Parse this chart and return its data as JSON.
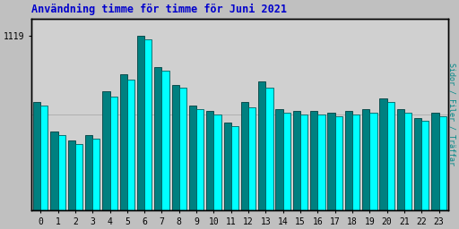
{
  "title": "Användning timme för timme för Juni 2021",
  "ylabel_right": "Sidor / Filer / Träffar",
  "ytick_label": "1119",
  "hours": [
    0,
    1,
    2,
    3,
    4,
    5,
    6,
    7,
    8,
    9,
    10,
    11,
    12,
    13,
    14,
    15,
    16,
    17,
    18,
    19,
    20,
    21,
    22,
    23
  ],
  "bar1_values": [
    62,
    45,
    40,
    43,
    68,
    78,
    100,
    82,
    72,
    60,
    57,
    50,
    62,
    74,
    58,
    57,
    57,
    56,
    57,
    58,
    64,
    58,
    53,
    56
  ],
  "bar2_values": [
    60,
    43,
    38,
    41,
    65,
    75,
    98,
    80,
    70,
    58,
    55,
    48,
    59,
    70,
    56,
    55,
    55,
    54,
    55,
    56,
    62,
    56,
    51,
    54
  ],
  "bar1_color": "#008080",
  "bar2_color": "#00ffff",
  "bar1_edge": "#004040",
  "bar2_edge": "#006060",
  "bg_color": "#c0c0c0",
  "plot_bg_color": "#d0d0d0",
  "title_color": "#0000cc",
  "ylabel_right_color": "#008888",
  "grid_color": "#b0b0b0",
  "tick_color": "#000000",
  "border_color": "#000000",
  "ylim_max": 110,
  "ytick_val": 100
}
